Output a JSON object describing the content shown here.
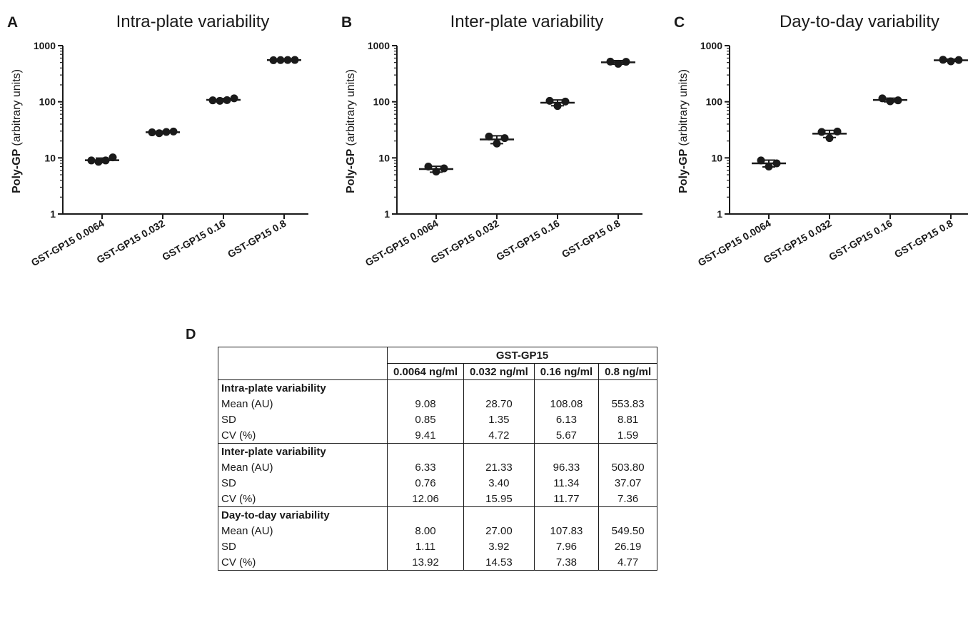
{
  "chart_data": [
    {
      "type": "scatter",
      "panel_letter": "A",
      "title": "Intra-plate variability",
      "ylabel_bold": "Poly-GP",
      "ylabel_rest": "(arbitrary units)",
      "yscale": "log",
      "ylim": [
        1,
        1000
      ],
      "yticks": [
        "1",
        "10",
        "100",
        "1000"
      ],
      "categories": [
        "GST-GP15 0.0064",
        "GST-GP15 0.032",
        "GST-GP15 0.16",
        "GST-GP15 0.8"
      ],
      "points": [
        [
          9,
          8.5,
          9,
          10.2
        ],
        [
          28.5,
          27.5,
          29,
          29.5
        ],
        [
          106,
          104,
          107,
          115
        ],
        [
          550,
          553,
          555,
          556
        ]
      ],
      "mean": [
        9.08,
        28.7,
        108.08,
        553.83
      ],
      "sd": [
        0.85,
        1.35,
        6.13,
        8.81
      ]
    },
    {
      "type": "scatter",
      "panel_letter": "B",
      "title": "Inter-plate variability",
      "ylabel_bold": "Poly-GP",
      "ylabel_rest": "(arbitrary units)",
      "yscale": "log",
      "ylim": [
        1,
        1000
      ],
      "yticks": [
        "1",
        "10",
        "100",
        "1000"
      ],
      "categories": [
        "GST-GP15 0.0064",
        "GST-GP15 0.032",
        "GST-GP15 0.16",
        "GST-GP15 0.8"
      ],
      "points": [
        [
          7,
          5.7,
          6.5
        ],
        [
          24,
          18,
          22.5
        ],
        [
          104,
          84,
          101
        ],
        [
          520,
          475,
          515
        ]
      ],
      "mean": [
        6.33,
        21.33,
        96.33,
        503.8
      ],
      "sd": [
        0.76,
        3.4,
        11.34,
        37.07
      ]
    },
    {
      "type": "scatter",
      "panel_letter": "C",
      "title": "Day-to-day variability",
      "ylabel_bold": "Poly-GP",
      "ylabel_rest": "(arbitrary units)",
      "yscale": "log",
      "ylim": [
        1,
        1000
      ],
      "yticks": [
        "1",
        "10",
        "100",
        "1000"
      ],
      "categories": [
        "GST-GP15 0.0064",
        "GST-GP15 0.032",
        "GST-GP15 0.16",
        "GST-GP15 0.8"
      ],
      "points": [
        [
          9,
          7,
          8
        ],
        [
          29,
          22.5,
          29.5
        ],
        [
          115,
          102,
          106
        ],
        [
          560,
          525,
          555
        ]
      ],
      "mean": [
        8.0,
        27.0,
        107.83,
        549.5
      ],
      "sd": [
        1.11,
        3.92,
        7.96,
        26.19
      ]
    }
  ],
  "table": {
    "panel_letter": "D",
    "group_header": "GST-GP15",
    "columns": [
      "0.0064 ng/ml",
      "0.032 ng/ml",
      "0.16 ng/ml",
      "0.8 ng/ml"
    ],
    "sections": [
      {
        "title": "Intra-plate variability",
        "rows": [
          {
            "label": "Mean (AU)",
            "values": [
              "9.08",
              "28.70",
              "108.08",
              "553.83"
            ]
          },
          {
            "label": "SD",
            "values": [
              "0.85",
              "1.35",
              "6.13",
              "8.81"
            ]
          },
          {
            "label": "CV (%)",
            "values": [
              "9.41",
              "4.72",
              "5.67",
              "1.59"
            ]
          }
        ]
      },
      {
        "title": "Inter-plate variability",
        "rows": [
          {
            "label": "Mean (AU)",
            "values": [
              "6.33",
              "21.33",
              "96.33",
              "503.80"
            ]
          },
          {
            "label": "SD",
            "values": [
              "0.76",
              "3.40",
              "11.34",
              "37.07"
            ]
          },
          {
            "label": "CV (%)",
            "values": [
              "12.06",
              "15.95",
              "11.77",
              "7.36"
            ]
          }
        ]
      },
      {
        "title": "Day-to-day variability",
        "rows": [
          {
            "label": "Mean (AU)",
            "values": [
              "8.00",
              "27.00",
              "107.83",
              "549.50"
            ]
          },
          {
            "label": "SD",
            "values": [
              "1.11",
              "3.92",
              "7.96",
              "26.19"
            ]
          },
          {
            "label": "CV (%)",
            "values": [
              "13.92",
              "14.53",
              "7.38",
              "4.77"
            ]
          }
        ]
      }
    ]
  }
}
